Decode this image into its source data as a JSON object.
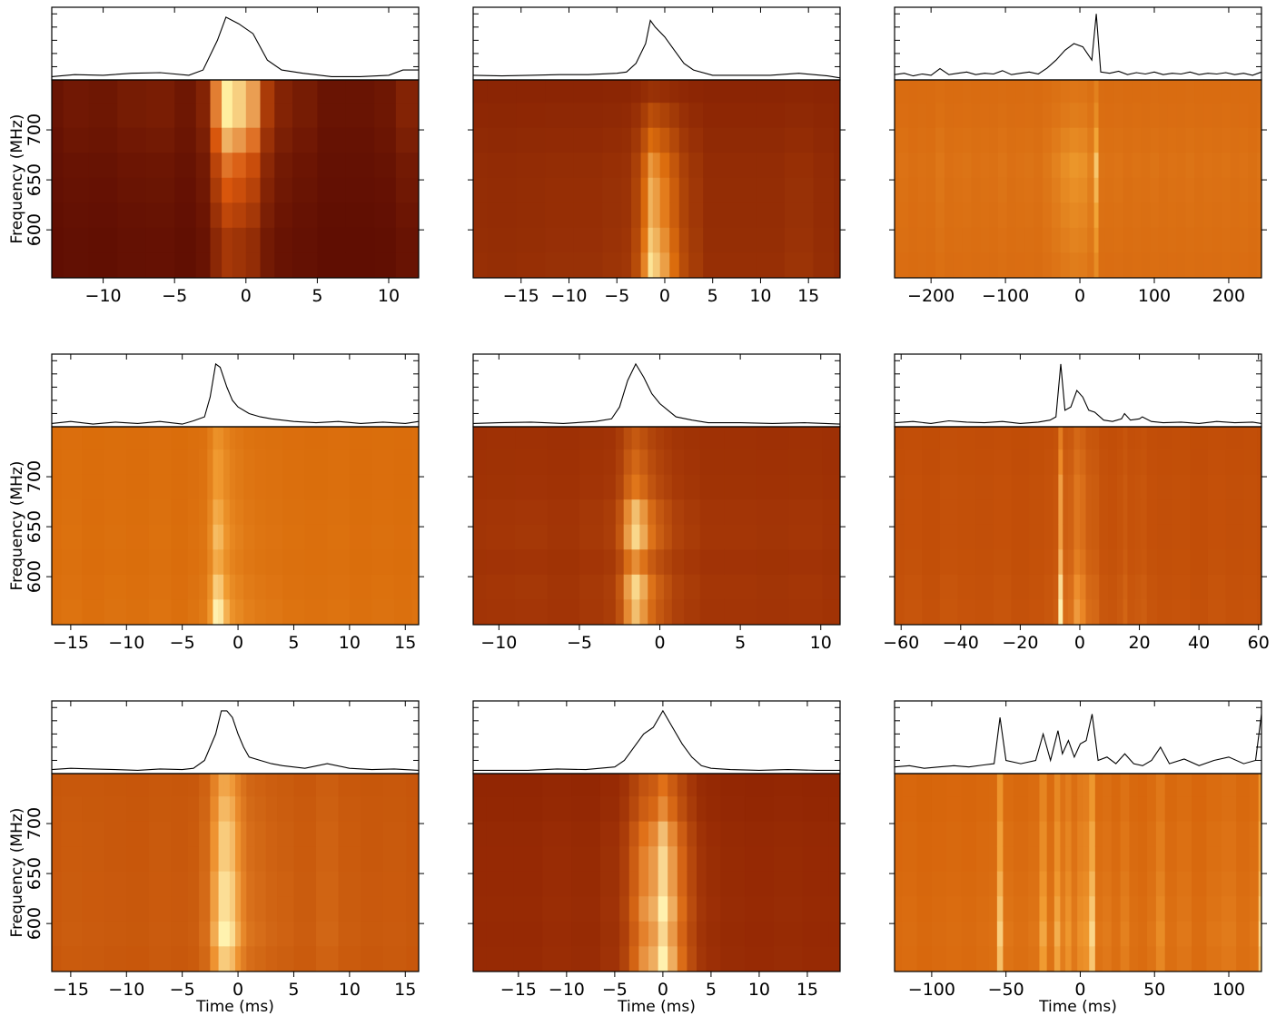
{
  "chart_data": [
    {
      "type": "waterfall",
      "ylabel": "Frequency (MHz)",
      "x": [
        -13.6,
        -12,
        -10,
        -8,
        -6,
        -4,
        -3,
        -2,
        -1.4,
        -0.5,
        0.5,
        1.5,
        2.5,
        4,
        6,
        8,
        10,
        11,
        12.1
      ],
      "values": [
        0.05,
        0.08,
        0.07,
        0.1,
        0.11,
        0.07,
        0.15,
        0.6,
        0.95,
        0.85,
        0.7,
        0.3,
        0.15,
        0.1,
        0.05,
        0.05,
        0.07,
        0.15,
        0.15
      ],
      "channels": [
        565,
        590,
        615,
        640,
        665,
        690,
        715,
        740
      ],
      "spectrum": [
        0.3,
        0.3,
        0.4,
        0.5,
        0.6,
        0.8,
        1,
        1
      ],
      "colors": [
        "#5c0c02",
        "#d8560c",
        "#fff0a0"
      ],
      "xlim": [
        -13.6,
        12.1
      ],
      "xticks": [
        {
          "value": -10,
          "label": "−10"
        },
        {
          "value": -5,
          "label": "−5"
        },
        0,
        5,
        10
      ],
      "ylim": [
        552,
        750
      ],
      "yticks": [
        600,
        650,
        700
      ],
      "profile_ylim": [
        0,
        1.1
      ],
      "profile_yticks": [
        0.2,
        0.4,
        0.6,
        0.8,
        1.0
      ]
    },
    {
      "type": "waterfall",
      "x": [
        -20,
        -17,
        -14,
        -11,
        -8,
        -5,
        -4,
        -3,
        -2,
        -1.5,
        -1,
        0,
        1,
        2,
        3,
        5,
        8,
        11,
        14,
        17,
        18.3
      ],
      "values": [
        0.07,
        0.06,
        0.07,
        0.08,
        0.08,
        0.1,
        0.12,
        0.25,
        0.55,
        0.9,
        0.8,
        0.65,
        0.45,
        0.25,
        0.15,
        0.07,
        0.07,
        0.07,
        0.1,
        0.06,
        0.03
      ],
      "channels": [
        565,
        590,
        615,
        640,
        665,
        690,
        715,
        740
      ],
      "spectrum": [
        1,
        0.9,
        0.8,
        0.8,
        0.7,
        0.5,
        0.3,
        0.1
      ],
      "colors": [
        "#8a2404",
        "#e0700e",
        "#fff2a8"
      ],
      "xlim": [
        -20,
        18.3
      ],
      "xticks": [
        {
          "value": -15,
          "label": "−15"
        },
        {
          "value": -10,
          "label": "−10"
        },
        {
          "value": -5,
          "label": "−5"
        },
        0,
        5,
        10,
        15
      ],
      "ylim": [
        552,
        750
      ],
      "yticks": [
        600,
        650,
        700
      ],
      "profile_ylim": [
        0,
        1.1
      ],
      "profile_yticks": [
        0.2,
        0.4,
        0.6,
        0.8,
        1.0
      ]
    },
    {
      "type": "waterfall",
      "x": [
        -249,
        -236,
        -224,
        -212,
        -200,
        -188,
        -176,
        -164,
        -152,
        -140,
        -128,
        -116,
        -104,
        -92,
        -80,
        -68,
        -56,
        -44,
        -32,
        -20,
        -8,
        4,
        16,
        22,
        28,
        40,
        52,
        64,
        76,
        88,
        100,
        112,
        124,
        136,
        148,
        160,
        172,
        184,
        196,
        208,
        220,
        232,
        244
      ],
      "values": [
        0.08,
        0.1,
        0.06,
        0.09,
        0.07,
        0.17,
        0.08,
        0.1,
        0.12,
        0.08,
        0.1,
        0.09,
        0.14,
        0.08,
        0.1,
        0.12,
        0.09,
        0.18,
        0.3,
        0.45,
        0.55,
        0.5,
        0.3,
        1.0,
        0.12,
        0.1,
        0.13,
        0.08,
        0.11,
        0.09,
        0.12,
        0.08,
        0.1,
        0.09,
        0.12,
        0.08,
        0.1,
        0.09,
        0.11,
        0.08,
        0.1,
        0.07,
        0.12
      ],
      "channels": [
        565,
        590,
        615,
        640,
        665,
        690,
        715,
        740
      ],
      "spectrum": [
        0.3,
        0.4,
        0.5,
        0.6,
        0.7,
        0.5,
        0.3,
        0.2
      ],
      "colors": [
        "#d86a10",
        "#f0a030",
        "#fff0b0"
      ],
      "xlim": [
        -249,
        244
      ],
      "xticks": [
        {
          "value": -200,
          "label": "−200"
        },
        {
          "value": -100,
          "label": "−100"
        },
        0,
        100,
        200
      ],
      "ylim": [
        552,
        750
      ],
      "yticks": [
        600,
        650,
        700
      ],
      "profile_ylim": [
        0,
        1.1
      ],
      "profile_yticks": [
        0.2,
        0.4,
        0.6,
        0.8,
        1.0
      ]
    },
    {
      "type": "waterfall",
      "ylabel": "Frequency (MHz)",
      "x": [
        -16.7,
        -15,
        -13,
        -11,
        -9,
        -7,
        -5,
        -4,
        -3,
        -2.5,
        -2,
        -1.6,
        -1,
        -0.5,
        0,
        1,
        2,
        3,
        5,
        7,
        9,
        11,
        13,
        15,
        16.2
      ],
      "values": [
        0.05,
        0.08,
        0.04,
        0.07,
        0.05,
        0.08,
        0.04,
        0.09,
        0.15,
        0.45,
        0.95,
        0.9,
        0.6,
        0.4,
        0.3,
        0.2,
        0.15,
        0.12,
        0.08,
        0.06,
        0.08,
        0.05,
        0.07,
        0.05,
        0.08
      ],
      "channels": [
        565,
        590,
        615,
        640,
        665,
        690,
        715,
        740
      ],
      "spectrum": [
        1,
        0.8,
        0.6,
        0.7,
        0.6,
        0.5,
        0.5,
        0.4
      ],
      "colors": [
        "#d96b0a",
        "#f09a30",
        "#fff0b0"
      ],
      "xlim": [
        -16.7,
        16.2
      ],
      "xticks": [
        {
          "value": -15,
          "label": "−15"
        },
        {
          "value": -10,
          "label": "−10"
        },
        {
          "value": -5,
          "label": "−5"
        },
        0,
        5,
        10,
        15
      ],
      "ylim": [
        552,
        750
      ],
      "yticks": [
        600,
        650,
        700
      ],
      "profile_ylim": [
        0,
        1.1
      ],
      "profile_yticks": [
        0.2,
        0.4,
        0.6,
        0.8,
        1.0
      ]
    },
    {
      "type": "waterfall",
      "x": [
        -11.6,
        -10,
        -8,
        -6,
        -4,
        -3,
        -2.5,
        -2,
        -1.5,
        -1,
        -0.5,
        0,
        0.5,
        1,
        2,
        3,
        5,
        7,
        9,
        11.2
      ],
      "values": [
        0.05,
        0.06,
        0.07,
        0.05,
        0.08,
        0.12,
        0.3,
        0.7,
        0.95,
        0.75,
        0.5,
        0.35,
        0.25,
        0.15,
        0.1,
        0.06,
        0.06,
        0.05,
        0.06,
        0.04
      ],
      "channels": [
        565,
        590,
        615,
        640,
        665,
        690,
        715,
        740
      ],
      "spectrum": [
        0.8,
        0.9,
        0.6,
        0.9,
        0.8,
        0.5,
        0.4,
        0.3
      ],
      "colors": [
        "#9c2e04",
        "#e0761a",
        "#fff0a8"
      ],
      "xlim": [
        -11.6,
        11.2
      ],
      "xticks": [
        {
          "value": -10,
          "label": "−10"
        },
        {
          "value": -5,
          "label": "−5"
        },
        0,
        5,
        10
      ],
      "ylim": [
        552,
        750
      ],
      "yticks": [
        600,
        650,
        700
      ],
      "profile_ylim": [
        0,
        1.1
      ],
      "profile_yticks": [
        0.2,
        0.4,
        0.6,
        0.8,
        1.0
      ]
    },
    {
      "type": "waterfall",
      "x": [
        -62,
        -56,
        -50,
        -44,
        -38,
        -32,
        -26,
        -20,
        -14,
        -10,
        -8,
        -6.4,
        -5,
        -3,
        -1,
        1,
        3,
        5,
        8,
        11,
        14,
        15,
        17,
        20,
        21,
        24,
        28,
        34,
        40,
        46,
        52,
        58,
        61
      ],
      "values": [
        0.06,
        0.08,
        0.05,
        0.09,
        0.07,
        0.06,
        0.08,
        0.05,
        0.07,
        0.1,
        0.15,
        0.95,
        0.25,
        0.3,
        0.55,
        0.45,
        0.25,
        0.22,
        0.1,
        0.08,
        0.12,
        0.2,
        0.1,
        0.12,
        0.15,
        0.08,
        0.06,
        0.07,
        0.05,
        0.08,
        0.06,
        0.07,
        0.05
      ],
      "channels": [
        565,
        590,
        615,
        640,
        665,
        690,
        715,
        740
      ],
      "spectrum": [
        1,
        0.9,
        0.7,
        0.6,
        0.6,
        0.6,
        0.5,
        0.4
      ],
      "colors": [
        "#bf4a06",
        "#ec8a28",
        "#fff0b0"
      ],
      "xlim": [
        -62.2,
        61
      ],
      "xticks": [
        {
          "value": -60,
          "label": "−60"
        },
        {
          "value": -40,
          "label": "−40"
        },
        {
          "value": -20,
          "label": "−20"
        },
        0,
        20,
        40,
        60
      ],
      "ylim": [
        552,
        750
      ],
      "yticks": [
        600,
        650,
        700
      ],
      "profile_ylim": [
        0,
        1.1
      ],
      "profile_yticks": [
        0.2,
        0.4,
        0.6,
        0.8,
        1.0
      ]
    },
    {
      "type": "waterfall",
      "ylabel": "Frequency (MHz)",
      "xlabel": "Time (ms)",
      "x": [
        -16.7,
        -15,
        -13,
        -11,
        -9,
        -7,
        -5,
        -4,
        -3,
        -2,
        -1.5,
        -1,
        -0.5,
        0,
        0.5,
        1,
        2,
        3,
        4,
        6,
        8,
        10,
        12,
        14,
        16.2
      ],
      "values": [
        0.06,
        0.08,
        0.07,
        0.06,
        0.05,
        0.07,
        0.06,
        0.08,
        0.2,
        0.6,
        0.95,
        0.95,
        0.85,
        0.6,
        0.4,
        0.25,
        0.2,
        0.15,
        0.12,
        0.08,
        0.15,
        0.08,
        0.06,
        0.07,
        0.05
      ],
      "channels": [
        565,
        590,
        615,
        640,
        665,
        690,
        715,
        740
      ],
      "spectrum": [
        0.8,
        1,
        0.9,
        0.9,
        0.8,
        0.8,
        0.7,
        0.6
      ],
      "colors": [
        "#c45208",
        "#ee9230",
        "#fff2b0"
      ],
      "xlim": [
        -16.7,
        16.2
      ],
      "xticks": [
        {
          "value": -15,
          "label": "−15"
        },
        {
          "value": -10,
          "label": "−10"
        },
        {
          "value": -5,
          "label": "−5"
        },
        0,
        5,
        10,
        15
      ],
      "ylim": [
        552,
        750
      ],
      "yticks": [
        600,
        650,
        700
      ],
      "profile_ylim": [
        0,
        1.1
      ],
      "profile_yticks": [
        0.2,
        0.4,
        0.6,
        0.8,
        1.0
      ]
    },
    {
      "type": "waterfall",
      "xlabel": "Time (ms)",
      "x": [
        -19.7,
        -17,
        -14,
        -11,
        -8,
        -5,
        -4,
        -3,
        -2,
        -1,
        0,
        1,
        2,
        3,
        4,
        5,
        7,
        10,
        13,
        16,
        18.4
      ],
      "values": [
        0.05,
        0.05,
        0.05,
        0.07,
        0.06,
        0.1,
        0.2,
        0.4,
        0.6,
        0.7,
        0.95,
        0.7,
        0.45,
        0.25,
        0.12,
        0.08,
        0.06,
        0.05,
        0.06,
        0.05,
        0.05
      ],
      "channels": [
        565,
        590,
        615,
        640,
        665,
        690,
        715,
        740
      ],
      "spectrum": [
        1,
        0.9,
        1,
        0.9,
        0.9,
        0.8,
        0.6,
        0.5
      ],
      "colors": [
        "#8e2202",
        "#e07018",
        "#fff2b0"
      ],
      "xlim": [
        -19.7,
        18.4
      ],
      "xticks": [
        {
          "value": -15,
          "label": "−15"
        },
        {
          "value": -10,
          "label": "−10"
        },
        {
          "value": -5,
          "label": "−5"
        },
        0,
        5,
        10,
        15
      ],
      "ylim": [
        552,
        750
      ],
      "yticks": [
        600,
        650,
        700
      ],
      "profile_ylim": [
        0,
        1.1
      ],
      "profile_yticks": [
        0.2,
        0.4,
        0.6,
        0.8,
        1.0
      ]
    },
    {
      "type": "waterfall",
      "xlabel": "Time (ms)",
      "x": [
        -125,
        -115,
        -105,
        -95,
        -85,
        -75,
        -65,
        -58,
        -54,
        -50,
        -40,
        -30,
        -25,
        -20,
        -15,
        -12,
        -8,
        -4,
        0,
        4,
        8,
        12,
        18,
        24,
        30,
        36,
        42,
        48,
        54,
        60,
        70,
        80,
        90,
        100,
        110,
        118,
        122
      ],
      "values": [
        0.1,
        0.12,
        0.08,
        0.1,
        0.12,
        0.1,
        0.13,
        0.15,
        0.85,
        0.2,
        0.15,
        0.2,
        0.6,
        0.2,
        0.65,
        0.3,
        0.5,
        0.25,
        0.45,
        0.5,
        0.9,
        0.2,
        0.25,
        0.15,
        0.3,
        0.15,
        0.12,
        0.2,
        0.4,
        0.15,
        0.22,
        0.12,
        0.2,
        0.25,
        0.15,
        0.2,
        0.9
      ],
      "channels": [
        565,
        590,
        615,
        640,
        665,
        690,
        715,
        740
      ],
      "spectrum": [
        0.8,
        0.9,
        0.8,
        0.7,
        0.6,
        0.6,
        0.5,
        0.5
      ],
      "colors": [
        "#d46008",
        "#f09a30",
        "#fff0b0"
      ],
      "xlim": [
        -125,
        122
      ],
      "xticks": [
        {
          "value": -100,
          "label": "−100"
        },
        {
          "value": -50,
          "label": "−50"
        },
        0,
        50,
        100
      ],
      "ylim": [
        552,
        750
      ],
      "yticks": [
        600,
        650,
        700
      ],
      "profile_ylim": [
        0,
        1.1
      ],
      "profile_yticks": [
        0.2,
        0.4,
        0.6,
        0.8,
        1.0
      ]
    }
  ]
}
